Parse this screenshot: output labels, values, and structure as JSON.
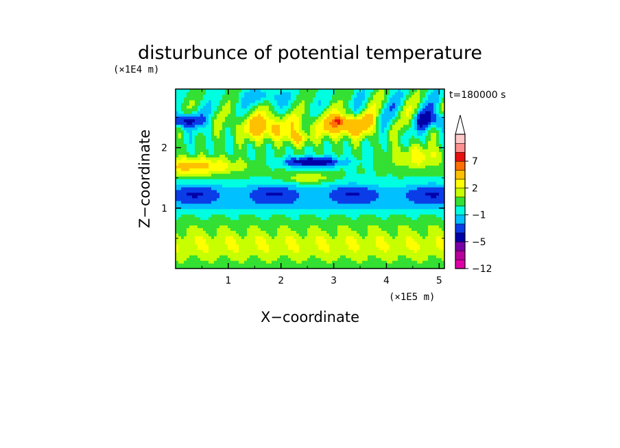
{
  "chart_data": {
    "type": "heatmap",
    "title": "disturbunce of potential temperature",
    "xlabel": "X−coordinate",
    "ylabel": "Z−coordinate",
    "x_unit": "(×1E5 m)",
    "y_unit": "(×1E4 m)",
    "time_label": "t=180000 s",
    "xlim": [
      0,
      5.1
    ],
    "ylim": [
      0,
      2.97
    ],
    "x_ticks": [
      1,
      2,
      3,
      4,
      5
    ],
    "y_ticks": [
      1,
      2
    ],
    "x_tick_labels": [
      "1",
      "2",
      "3",
      "4",
      "5"
    ],
    "y_tick_labels": [
      "1",
      "2"
    ],
    "colorbar": {
      "boundaries": [
        -12,
        -9,
        -7,
        -5,
        -3,
        -2,
        -1,
        0,
        1,
        2,
        3,
        5,
        7,
        9,
        11
      ],
      "colors": [
        "#e000a8",
        "#b8009a",
        "#7a00a8",
        "#0000a8",
        "#0a3ce8",
        "#00c0ff",
        "#00ffe0",
        "#33e033",
        "#c8ff00",
        "#ffff00",
        "#ffc000",
        "#ff7000",
        "#e81010",
        "#ff9090",
        "#ffc8c8"
      ],
      "labeled_values": [
        "−12",
        "−5",
        "−1",
        "2",
        "7"
      ],
      "labeled_boundaries": [
        -12,
        -5,
        -1,
        2,
        7
      ],
      "extend": "max"
    },
    "field_features": [
      {
        "region": "lower layer",
        "z_range": [
          0,
          0.8
        ],
        "value": 1.5
      },
      {
        "region": "blue band",
        "z_range": [
          1.1,
          1.45
        ],
        "value": -1.5
      },
      {
        "region": "warm anomaly",
        "x": 1.7,
        "z": 2.4,
        "value": 3.5
      },
      {
        "region": "warm anomaly",
        "x": 3.2,
        "z": 2.4,
        "value": 4.5
      },
      {
        "region": "peak",
        "x": 3.1,
        "z": 2.45,
        "value": 8
      },
      {
        "region": "cold blob",
        "x": 2.6,
        "z": 1.75,
        "value": -4
      },
      {
        "region": "cold edge",
        "x": 0.2,
        "z": 2.45,
        "value": -4
      }
    ]
  }
}
